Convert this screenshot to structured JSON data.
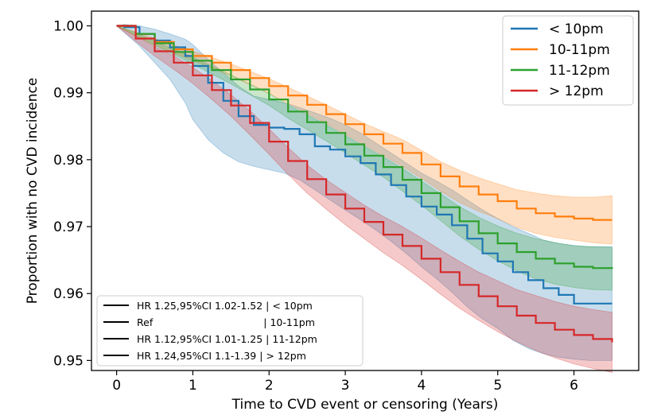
{
  "chart_data": {
    "type": "line",
    "title": "",
    "xlabel": "Time to CVD event or censoring (Years)",
    "ylabel": "Proportion with no CVD incidence",
    "xlim": [
      -0.33,
      6.85
    ],
    "ylim": [
      0.9485,
      1.0022
    ],
    "xticks": [
      0,
      1,
      2,
      3,
      4,
      5,
      6
    ],
    "yticks": [
      0.95,
      0.96,
      0.97,
      0.98,
      0.99,
      1.0
    ],
    "ytick_labels": [
      "0.95",
      "0.96",
      "0.97",
      "0.98",
      "0.99",
      "1.00"
    ],
    "grid": false,
    "legend_position": "top-right",
    "series": [
      {
        "name": "< 10pm",
        "color": "#1f77b4",
        "x": [
          0,
          0.1,
          0.3,
          0.5,
          0.7,
          0.9,
          1.0,
          1.2,
          1.4,
          1.6,
          1.8,
          2.0,
          2.2,
          2.4,
          2.6,
          2.8,
          3.0,
          3.2,
          3.4,
          3.6,
          3.8,
          4.0,
          4.2,
          4.4,
          4.6,
          4.8,
          5.0,
          5.2,
          5.4,
          5.6,
          5.8,
          6.0,
          6.2,
          6.5
        ],
        "y": [
          1.0,
          0.9998,
          0.9988,
          0.9978,
          0.9968,
          0.9955,
          0.994,
          0.9915,
          0.9888,
          0.9865,
          0.9852,
          0.9848,
          0.9846,
          0.9838,
          0.982,
          0.9815,
          0.9805,
          0.9795,
          0.9778,
          0.9762,
          0.9745,
          0.973,
          0.9718,
          0.9702,
          0.9682,
          0.966,
          0.9648,
          0.9632,
          0.962,
          0.9608,
          0.9598,
          0.9585,
          0.9585,
          0.9585
        ],
        "ci_lower": [
          1.0,
          0.999,
          0.997,
          0.9945,
          0.992,
          0.9885,
          0.986,
          0.983,
          0.981,
          0.9797,
          0.979,
          0.9785,
          0.978,
          0.977,
          0.9755,
          0.974,
          0.9725,
          0.971,
          0.9695,
          0.9678,
          0.966,
          0.964,
          0.9622,
          0.9602,
          0.958,
          0.9562,
          0.9548,
          0.953,
          0.9518,
          0.951,
          0.9505,
          0.9502,
          0.95,
          0.95
        ],
        "ci_upper": [
          1.0,
          1.0002,
          1.0,
          0.9995,
          0.9988,
          0.998,
          0.9972,
          0.995,
          0.993,
          0.991,
          0.9895,
          0.989,
          0.9885,
          0.9878,
          0.987,
          0.9862,
          0.9852,
          0.984,
          0.9825,
          0.981,
          0.9795,
          0.978,
          0.9768,
          0.9755,
          0.974,
          0.9725,
          0.9712,
          0.97,
          0.969,
          0.968,
          0.9675,
          0.9672,
          0.967,
          0.967
        ]
      },
      {
        "name": "10-11pm",
        "color": "#ff7f0e",
        "x": [
          0,
          0.25,
          0.5,
          0.75,
          1.0,
          1.25,
          1.5,
          1.75,
          2.0,
          2.25,
          2.5,
          2.75,
          3.0,
          3.25,
          3.5,
          3.75,
          4.0,
          4.25,
          4.5,
          4.75,
          5.0,
          5.25,
          5.5,
          5.75,
          6.0,
          6.25,
          6.5
        ],
        "y": [
          1.0,
          0.9988,
          0.9976,
          0.9965,
          0.9955,
          0.9945,
          0.9934,
          0.9922,
          0.991,
          0.9896,
          0.9882,
          0.9868,
          0.9853,
          0.9838,
          0.9824,
          0.981,
          0.9793,
          0.9775,
          0.976,
          0.9748,
          0.9738,
          0.9727,
          0.972,
          0.9715,
          0.9712,
          0.971,
          0.971
        ],
        "ci_lower": [
          1.0,
          0.9985,
          0.9971,
          0.9959,
          0.9948,
          0.9937,
          0.9925,
          0.9912,
          0.9899,
          0.9884,
          0.9869,
          0.9854,
          0.9838,
          0.9822,
          0.9806,
          0.979,
          0.9772,
          0.9753,
          0.9736,
          0.9723,
          0.9712,
          0.9699,
          0.969,
          0.9684,
          0.968,
          0.9676,
          0.9674
        ],
        "ci_upper": [
          1.0,
          0.9991,
          0.9981,
          0.9971,
          0.9962,
          0.9953,
          0.9943,
          0.9932,
          0.9921,
          0.9908,
          0.9895,
          0.9882,
          0.9868,
          0.9854,
          0.9842,
          0.983,
          0.9814,
          0.9797,
          0.9784,
          0.9773,
          0.9764,
          0.9755,
          0.975,
          0.9746,
          0.9744,
          0.9744,
          0.9746
        ]
      },
      {
        "name": "11-12pm",
        "color": "#2ca02c",
        "x": [
          0,
          0.25,
          0.5,
          0.75,
          1.0,
          1.25,
          1.5,
          1.75,
          2.0,
          2.25,
          2.5,
          2.75,
          3.0,
          3.25,
          3.5,
          3.75,
          4.0,
          4.25,
          4.5,
          4.75,
          5.0,
          5.25,
          5.5,
          5.75,
          6.0,
          6.25,
          6.5
        ],
        "y": [
          1.0,
          0.9988,
          0.9974,
          0.9961,
          0.9948,
          0.9934,
          0.992,
          0.9905,
          0.989,
          0.9872,
          0.9856,
          0.984,
          0.9823,
          0.9806,
          0.9789,
          0.977,
          0.975,
          0.9729,
          0.9708,
          0.969,
          0.9675,
          0.9662,
          0.9652,
          0.9645,
          0.964,
          0.9638,
          0.9637
        ],
        "ci_lower": [
          1.0,
          0.9986,
          0.9971,
          0.9957,
          0.9943,
          0.9928,
          0.9913,
          0.9897,
          0.9881,
          0.9862,
          0.9845,
          0.9828,
          0.981,
          0.9792,
          0.9774,
          0.9753,
          0.9732,
          0.9709,
          0.9686,
          0.9666,
          0.9649,
          0.9634,
          0.9622,
          0.9614,
          0.9609,
          0.9606,
          0.9605
        ],
        "ci_upper": [
          1.0,
          0.999,
          0.9977,
          0.9965,
          0.9953,
          0.994,
          0.9927,
          0.9913,
          0.9899,
          0.9882,
          0.9867,
          0.9852,
          0.9836,
          0.982,
          0.9804,
          0.9787,
          0.9768,
          0.9749,
          0.973,
          0.9714,
          0.9701,
          0.969,
          0.9682,
          0.9676,
          0.9671,
          0.967,
          0.9669
        ]
      },
      {
        "name": "> 12pm",
        "color": "#d62728",
        "x": [
          0,
          0.25,
          0.5,
          0.75,
          1.0,
          1.25,
          1.5,
          1.75,
          2.0,
          2.25,
          2.5,
          2.75,
          3.0,
          3.25,
          3.5,
          3.75,
          4.0,
          4.25,
          4.5,
          4.75,
          5.0,
          5.25,
          5.5,
          5.75,
          6.0,
          6.25,
          6.5
        ],
        "y": [
          1.0,
          0.9981,
          0.9962,
          0.9945,
          0.9926,
          0.9904,
          0.9881,
          0.9855,
          0.9827,
          0.9798,
          0.9771,
          0.9748,
          0.9727,
          0.9707,
          0.9688,
          0.9671,
          0.9652,
          0.9632,
          0.9613,
          0.9596,
          0.9581,
          0.9567,
          0.9556,
          0.9546,
          0.9538,
          0.9532,
          0.9527
        ],
        "ci_lower": [
          1.0,
          0.9977,
          0.9955,
          0.9935,
          0.9914,
          0.989,
          0.9865,
          0.9837,
          0.9808,
          0.9778,
          0.975,
          0.9726,
          0.9703,
          0.9682,
          0.9661,
          0.9642,
          0.9621,
          0.9599,
          0.9578,
          0.956,
          0.9543,
          0.9528,
          0.9515,
          0.9504,
          0.9495,
          0.9488,
          0.9482
        ],
        "ci_upper": [
          1.0,
          0.9985,
          0.9969,
          0.9955,
          0.9938,
          0.9918,
          0.9897,
          0.9873,
          0.9846,
          0.9818,
          0.9792,
          0.977,
          0.9751,
          0.9732,
          0.9715,
          0.97,
          0.9683,
          0.9665,
          0.9648,
          0.9632,
          0.9619,
          0.9606,
          0.9597,
          0.9588,
          0.9581,
          0.9576,
          0.9572
        ]
      }
    ],
    "hr_legend": [
      {
        "label": "HR 1.25,95%CI 1.02-1.52 | < 10pm",
        "color": "#000000"
      },
      {
        "label": "Ref                                   | 10-11pm",
        "color": "#000000"
      },
      {
        "label": "HR 1.12,95%CI 1.01-1.25 | 11-12pm",
        "color": "#000000"
      },
      {
        "label": "HR 1.24,95%CI 1.1-1.39 | > 12pm",
        "color": "#000000"
      }
    ]
  }
}
